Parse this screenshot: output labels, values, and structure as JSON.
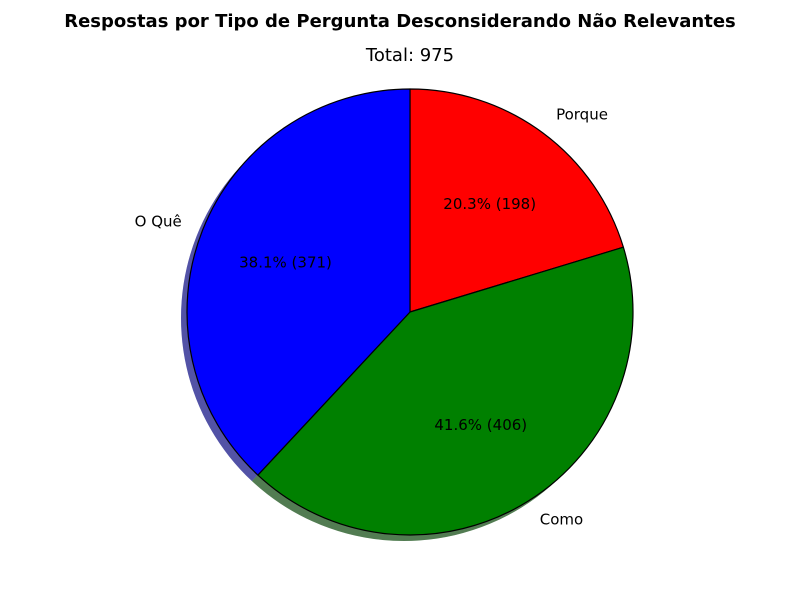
{
  "chart_data": {
    "type": "pie",
    "title": "Respostas por Tipo de Pergunta Desconsiderando Não Relevantes",
    "subtitle": "Total: 975",
    "slices": [
      {
        "label": "Porque",
        "value": 198,
        "percent_label": "20.3% (198)",
        "color": "#ff0000"
      },
      {
        "label": "Como",
        "value": 406,
        "percent_label": "41.6% (406)",
        "color": "#008000"
      },
      {
        "label": "O Quê",
        "value": 371,
        "percent_label": "38.1% (371)",
        "color": "#0000ff"
      }
    ],
    "start_angle_deg": 90,
    "direction": "clockwise",
    "shadow": true,
    "edge_color": "#000000"
  }
}
